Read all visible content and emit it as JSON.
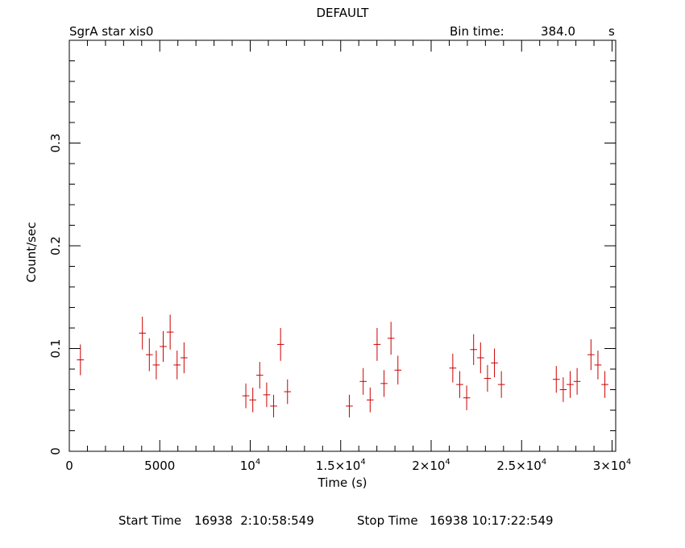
{
  "header": {
    "title": "DEFAULT",
    "source": "SgrA star xis0",
    "bin_label": "Bin time:",
    "bin_value": "384.0",
    "bin_unit": "s"
  },
  "footer": {
    "start_label": "Start Time",
    "start_value": "16938  2:10:58:549",
    "stop_label": "Stop Time",
    "stop_value": "16938 10:17:22:549"
  },
  "colors": {
    "data": "#cc0000",
    "axes": "#000000",
    "background": "#ffffff"
  },
  "chart_data": {
    "type": "scatter",
    "title": "DEFAULT",
    "xlabel": "Time (s)",
    "ylabel": "Count/sec",
    "xlim": [
      0,
      30200
    ],
    "ylim": [
      0,
      0.4
    ],
    "x_tick_labels": [
      {
        "value": 0,
        "base": "0",
        "exp": ""
      },
      {
        "value": 5000,
        "base": "5000",
        "exp": ""
      },
      {
        "value": 10000,
        "base": "10",
        "exp": "4"
      },
      {
        "value": 15000,
        "base": "1.5×10",
        "exp": "4"
      },
      {
        "value": 20000,
        "base": "2×10",
        "exp": "4"
      },
      {
        "value": 25000,
        "base": "2.5×10",
        "exp": "4"
      },
      {
        "value": 30000,
        "base": "3×10",
        "exp": "4"
      }
    ],
    "y_tick_labels": [
      {
        "value": 0,
        "label": "0"
      },
      {
        "value": 0.1,
        "label": "0.1"
      },
      {
        "value": 0.2,
        "label": "0.2"
      },
      {
        "value": 0.3,
        "label": "0.3"
      }
    ],
    "x_minor_step": 1000,
    "y_minor_step": 0.02,
    "x_err": 192,
    "series": [
      {
        "points": [
          {
            "x": 614,
            "y": 0.089,
            "e": 0.015
          },
          {
            "x": 4039,
            "y": 0.115,
            "e": 0.016
          },
          {
            "x": 4423,
            "y": 0.094,
            "e": 0.016
          },
          {
            "x": 4806,
            "y": 0.084,
            "e": 0.014
          },
          {
            "x": 5190,
            "y": 0.102,
            "e": 0.015
          },
          {
            "x": 5574,
            "y": 0.116,
            "e": 0.017
          },
          {
            "x": 5958,
            "y": 0.084,
            "e": 0.014
          },
          {
            "x": 6342,
            "y": 0.091,
            "e": 0.015
          },
          {
            "x": 9758,
            "y": 0.054,
            "e": 0.012
          },
          {
            "x": 10142,
            "y": 0.05,
            "e": 0.012
          },
          {
            "x": 10525,
            "y": 0.074,
            "e": 0.013
          },
          {
            "x": 10909,
            "y": 0.055,
            "e": 0.012
          },
          {
            "x": 11293,
            "y": 0.044,
            "e": 0.011
          },
          {
            "x": 11677,
            "y": 0.104,
            "e": 0.016
          },
          {
            "x": 12061,
            "y": 0.058,
            "e": 0.012
          },
          {
            "x": 15477,
            "y": 0.044,
            "e": 0.011
          },
          {
            "x": 16244,
            "y": 0.068,
            "e": 0.013
          },
          {
            "x": 16628,
            "y": 0.05,
            "e": 0.012
          },
          {
            "x": 17012,
            "y": 0.104,
            "e": 0.016
          },
          {
            "x": 17396,
            "y": 0.066,
            "e": 0.013
          },
          {
            "x": 17780,
            "y": 0.11,
            "e": 0.016
          },
          {
            "x": 18163,
            "y": 0.079,
            "e": 0.014
          },
          {
            "x": 21196,
            "y": 0.081,
            "e": 0.014
          },
          {
            "x": 21580,
            "y": 0.065,
            "e": 0.013
          },
          {
            "x": 21964,
            "y": 0.052,
            "e": 0.012
          },
          {
            "x": 22347,
            "y": 0.099,
            "e": 0.015
          },
          {
            "x": 22731,
            "y": 0.091,
            "e": 0.015
          },
          {
            "x": 23115,
            "y": 0.071,
            "e": 0.013
          },
          {
            "x": 23499,
            "y": 0.086,
            "e": 0.014
          },
          {
            "x": 23882,
            "y": 0.065,
            "e": 0.013
          },
          {
            "x": 26916,
            "y": 0.07,
            "e": 0.013
          },
          {
            "x": 27300,
            "y": 0.06,
            "e": 0.012
          },
          {
            "x": 27683,
            "y": 0.065,
            "e": 0.013
          },
          {
            "x": 28067,
            "y": 0.068,
            "e": 0.013
          },
          {
            "x": 28834,
            "y": 0.094,
            "e": 0.015
          },
          {
            "x": 29218,
            "y": 0.084,
            "e": 0.014
          },
          {
            "x": 29602,
            "y": 0.065,
            "e": 0.013
          }
        ]
      }
    ]
  }
}
